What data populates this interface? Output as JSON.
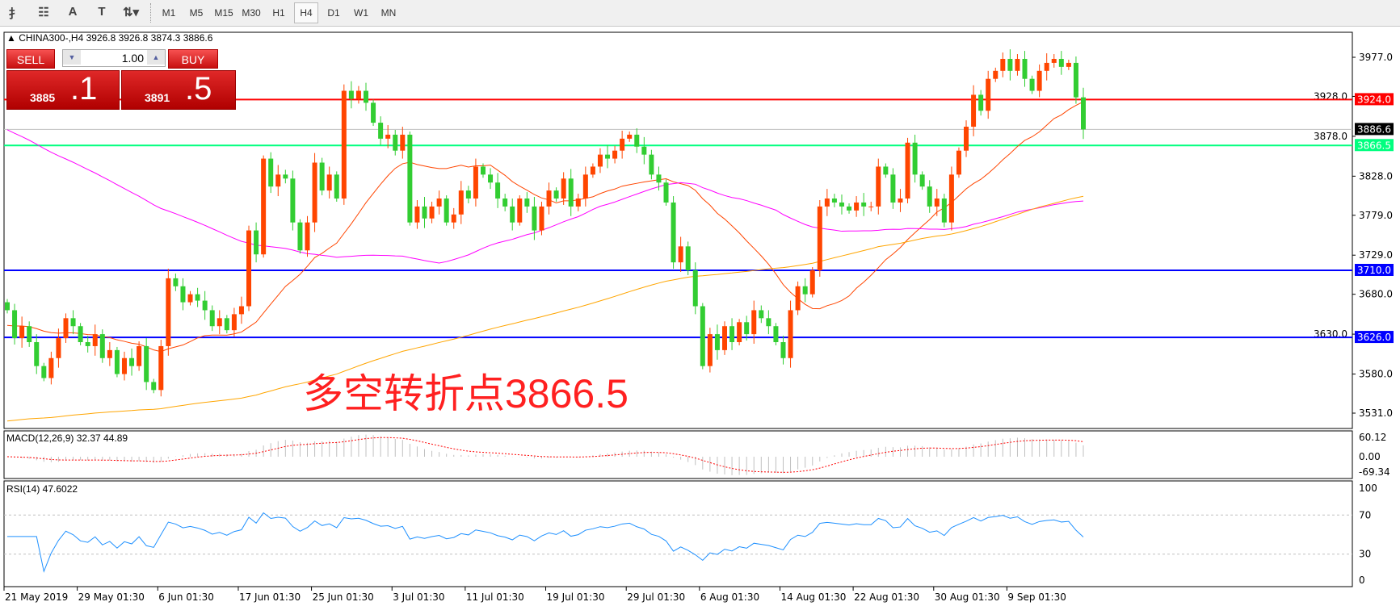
{
  "toolbar": {
    "icons": [
      "elliott-wave-icon",
      "fibonacci-icon",
      "text-icon",
      "text-label-icon",
      "arrows-icon"
    ],
    "icon_glyphs": [
      "⺘",
      "☷",
      "A",
      "T",
      "⇅▾"
    ],
    "timeframes": [
      "M1",
      "M5",
      "M15",
      "M30",
      "H1",
      "H4",
      "D1",
      "W1",
      "MN"
    ],
    "active_timeframe": "H4"
  },
  "chart_header": {
    "symbol": "CHINA300-,H4",
    "open": "3926.8",
    "high": "3926.8",
    "low": "3874.3",
    "close": "3886.6",
    "text": "CHINA300-,H4  3926.8 3926.8 3874.3 3886.6"
  },
  "trade_panel": {
    "sell_label": "SELL",
    "buy_label": "BUY",
    "lot": "1.00",
    "sell_small": "3885",
    "sell_big": ".1",
    "buy_small": "3891",
    "buy_big": ".5"
  },
  "annotation": "多空转折点3866.5",
  "colors": {
    "up": "#ff4500",
    "down": "#32cd32",
    "resistance": "#ff0000",
    "pivot": "#00ff7f",
    "support": "#0000ff",
    "ma_fast": "#ff4500",
    "ma_mid": "#ff00ff",
    "ma_slow": "#ffa500",
    "rsi": "#1e90ff",
    "macd_signal": "#ff0000",
    "macd_hist": "#c0c0c0"
  },
  "chart_data": {
    "type": "candlestick",
    "ylim": [
      3510,
      3997
    ],
    "yticks": [
      "3977.0",
      "3928.0",
      "3878.0",
      "3828.0",
      "3779.0",
      "3729.0",
      "3680.0",
      "3630.0",
      "3580.0",
      "3531.0"
    ],
    "levels": [
      {
        "value": 3924.0,
        "label": "3924.0",
        "color": "#ff0000"
      },
      {
        "value": 3866.5,
        "label": "3866.5",
        "color": "#00ff7f"
      },
      {
        "value": 3710.0,
        "label": "3710.0",
        "color": "#0000ff"
      },
      {
        "value": 3626.0,
        "label": "3626.0",
        "color": "#0000ff"
      }
    ],
    "current_price": {
      "value": 3886.6,
      "label": "3886.6"
    },
    "closes": [
      3660,
      3625,
      3640,
      3620,
      3590,
      3575,
      3600,
      3625,
      3650,
      3640,
      3620,
      3615,
      3630,
      3600,
      3610,
      3580,
      3600,
      3590,
      3615,
      3570,
      3560,
      3615,
      3700,
      3690,
      3670,
      3680,
      3672,
      3660,
      3640,
      3650,
      3635,
      3655,
      3665,
      3760,
      3730,
      3850,
      3815,
      3830,
      3825,
      3770,
      3735,
      3770,
      3845,
      3810,
      3830,
      3800,
      3935,
      3925,
      3935,
      3920,
      3895,
      3875,
      3880,
      3860,
      3880,
      3770,
      3790,
      3775,
      3790,
      3800,
      3770,
      3780,
      3810,
      3800,
      3840,
      3830,
      3820,
      3800,
      3790,
      3770,
      3800,
      3790,
      3760,
      3790,
      3810,
      3800,
      3825,
      3790,
      3800,
      3830,
      3840,
      3855,
      3850,
      3860,
      3875,
      3880,
      3865,
      3855,
      3830,
      3820,
      3795,
      3720,
      3740,
      3710,
      3665,
      3590,
      3630,
      3610,
      3640,
      3620,
      3645,
      3630,
      3660,
      3650,
      3640,
      3620,
      3600,
      3660,
      3690,
      3680,
      3710,
      3790,
      3800,
      3795,
      3790,
      3785,
      3795,
      3790,
      3790,
      3840,
      3830,
      3795,
      3800,
      3870,
      3830,
      3815,
      3790,
      3800,
      3770,
      3830,
      3860,
      3890,
      3930,
      3910,
      3950,
      3960,
      3975,
      3960,
      3975,
      3950,
      3935,
      3960,
      3970,
      3975,
      3965,
      3970,
      3926.8,
      3886.6
    ],
    "x_labels": [
      {
        "index": 0,
        "label": "21 May 2019"
      },
      {
        "index": 10,
        "label": "29 May 01:30"
      },
      {
        "index": 21,
        "label": "6 Jun 01:30"
      },
      {
        "index": 32,
        "label": "17 Jun 01:30"
      },
      {
        "index": 42,
        "label": "25 Jun 01:30"
      },
      {
        "index": 53,
        "label": "3 Jul 01:30"
      },
      {
        "index": 63,
        "label": "11 Jul 01:30"
      },
      {
        "index": 74,
        "label": "19 Jul 01:30"
      },
      {
        "index": 85,
        "label": "29 Jul 01:30"
      },
      {
        "index": 95,
        "label": "6 Aug 01:30"
      },
      {
        "index": 106,
        "label": "14 Aug 01:30"
      },
      {
        "index": 116,
        "label": "22 Aug 01:30"
      },
      {
        "index": 127,
        "label": "30 Aug 01:30"
      },
      {
        "index": 137,
        "label": "9 Sep 01:30"
      }
    ]
  },
  "macd": {
    "label": "MACD(12,26,9) 32.37 44.89",
    "ticks": [
      "60.12",
      "0.00",
      "-69.34"
    ]
  },
  "rsi": {
    "label": "RSI(14) 47.6022",
    "ticks": [
      "100",
      "70",
      "30",
      "0"
    ]
  }
}
